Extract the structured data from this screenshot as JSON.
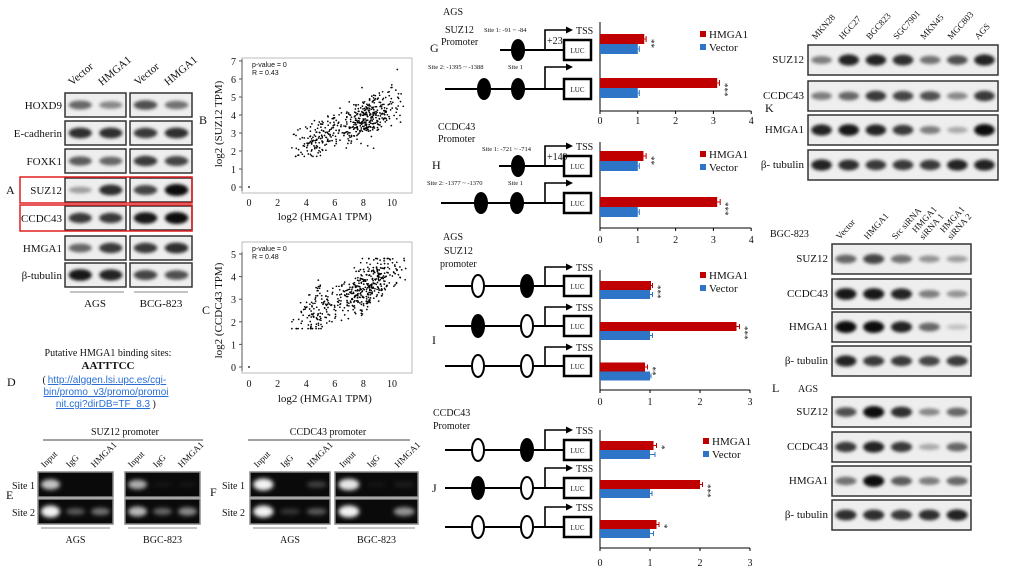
{
  "panel_letters": {
    "A": "A",
    "B": "B",
    "C": "C",
    "D": "D",
    "E": "E",
    "F": "F",
    "G": "G",
    "H": "H",
    "I": "I",
    "J": "J",
    "K": "K",
    "L": "L"
  },
  "colors": {
    "hmga1": "#c00000",
    "vector": "#2e75c8",
    "highlight": "#e02020",
    "link": "#2a6fd6"
  },
  "panel_a": {
    "columns": [
      "Vector",
      "HMGA1",
      "Vector",
      "HMGA1"
    ],
    "groups": [
      "AGS",
      "BCG-823"
    ],
    "rows": [
      {
        "label": "HOXD9",
        "highlight": false,
        "bands": [
          0.6,
          0.45,
          0.7,
          0.55
        ]
      },
      {
        "label": "E-cadherin",
        "highlight": false,
        "bands": [
          0.85,
          0.85,
          0.8,
          0.85
        ]
      },
      {
        "label": "FOXK1",
        "highlight": false,
        "bands": [
          0.65,
          0.6,
          0.8,
          0.75
        ]
      },
      {
        "label": "SUZ12",
        "highlight": true,
        "bands": [
          0.35,
          0.85,
          0.75,
          1.0
        ]
      },
      {
        "label": "CCDC43",
        "highlight": true,
        "bands": [
          0.8,
          0.8,
          0.95,
          1.0
        ]
      },
      {
        "label": "HMGA1",
        "highlight": false,
        "bands": [
          0.6,
          0.8,
          0.8,
          0.85
        ]
      },
      {
        "label": "β-tubulin",
        "highlight": false,
        "bands": [
          0.95,
          0.9,
          0.75,
          0.7
        ]
      }
    ]
  },
  "scatter_b": {
    "type": "scatter",
    "p_text": "p-value = 0",
    "r_text": "R = 0.43",
    "xlabel": "log2 (HMGA1 TPM)",
    "ylabel": "log2 (SUZ12 TPM)",
    "xticks": [
      "0",
      "2",
      "4",
      "6",
      "8",
      "10"
    ],
    "yticks": [
      "0",
      "1",
      "2",
      "3",
      "4",
      "5",
      "6",
      "7"
    ],
    "R": 0.43,
    "n_points": 500,
    "trend": {
      "slope": 0.34,
      "intercept": 1.1,
      "noise_sd": 0.55
    },
    "outlier": [
      0,
      0
    ]
  },
  "scatter_c": {
    "type": "scatter",
    "p_text": "p-value = 0",
    "r_text": "R = 0.48",
    "xlabel": "log2 (HMGA1 TPM)",
    "ylabel": "log2 (CCDC43 TPM)",
    "xticks": [
      "0",
      "2",
      "4",
      "6",
      "8",
      "10"
    ],
    "yticks": [
      "0",
      "1",
      "2",
      "3",
      "4",
      "5"
    ],
    "R": 0.48,
    "n_points": 500,
    "trend": {
      "slope": 0.31,
      "intercept": 1.05,
      "noise_sd": 0.5
    },
    "outlier": [
      0,
      0
    ]
  },
  "panel_d": {
    "title": "Putative HMGA1  binding sites:",
    "motif": "AATTTCC",
    "link_lines": [
      "http://alggen.lsi.upc.es/cgi-",
      "bin/promo_v3/promo/promoi",
      "nit.cgi?dirDB=TF_8.3"
    ],
    "open": "(",
    "close": ")"
  },
  "panel_e": {
    "title": "SUZ12 promoter",
    "lanes": [
      "Input",
      "IgG",
      "HMGA1"
    ],
    "groups": [
      "AGS",
      "BGC-823"
    ],
    "sites": [
      "Site 1",
      "Site 2"
    ],
    "bands": [
      [
        [
          0.8,
          0,
          0
        ],
        [
          0.7,
          0.05,
          0.05
        ]
      ],
      [
        [
          1,
          0.35,
          0.45
        ],
        [
          0.75,
          0.4,
          0.55
        ]
      ]
    ]
  },
  "panel_f": {
    "title": "CCDC43 promoter",
    "lanes": [
      "Input",
      "IgG",
      "HMGA1"
    ],
    "groups": [
      "AGS",
      "BGC-823"
    ],
    "sites": [
      "Site 1",
      "Site 2"
    ],
    "bands": [
      [
        [
          1,
          0,
          0.25
        ],
        [
          0.95,
          0.05,
          0.1
        ]
      ],
      [
        [
          1,
          0.2,
          0.35
        ],
        [
          1,
          0,
          0.6
        ]
      ]
    ]
  },
  "diagram_g": {
    "cell": "AGS",
    "gene": "SUZ12",
    "promoter": "Promoter",
    "site1": "Site 1:  -91 ~ -84",
    "offset": "+23",
    "site2": "Site 2:  -1395 ~ -1388",
    "site1_short": "Site 1",
    "tss": "TSS",
    "luc": "LUC"
  },
  "diagram_h": {
    "gene": "CCDC43",
    "promoter": "Promoter",
    "site1": "Site 1:  -721 ~ -714",
    "offset": "+149",
    "site2": "Site 2:  -1377 ~ -1370",
    "site1_short": "Site 1",
    "tss": "TSS",
    "luc": "LUC"
  },
  "diagram_i": {
    "cell": "AGS",
    "gene": "SUZ12",
    "promoter": "promoter",
    "tss": "TSS",
    "luc": "LUC",
    "constructs": [
      [
        "open",
        "filled"
      ],
      [
        "filled",
        "open"
      ],
      [
        "open",
        "open"
      ]
    ]
  },
  "diagram_j": {
    "gene": "CCDC43",
    "promoter": "Promoter",
    "tss": "TSS",
    "luc": "LUC",
    "constructs": [
      [
        "open",
        "filled"
      ],
      [
        "filled",
        "open"
      ],
      [
        "open",
        "open"
      ]
    ]
  },
  "chart_data": [
    {
      "id": "G",
      "type": "bar",
      "orientation": "horizontal",
      "xticks": [
        "0",
        "1",
        "2",
        "3",
        "4"
      ],
      "xlim": [
        0,
        4
      ],
      "legend": "top-right",
      "series": [
        {
          "name": "HMGA1",
          "values": [
            1.17,
            3.1
          ],
          "errors": [
            0.05,
            0.06
          ]
        },
        {
          "name": "Vector",
          "values": [
            1.0,
            1.0
          ],
          "errors": [
            0.04,
            0.04
          ]
        }
      ],
      "significance": [
        "**",
        "***"
      ]
    },
    {
      "id": "H",
      "type": "bar",
      "orientation": "horizontal",
      "xticks": [
        "0",
        "1",
        "2",
        "3",
        "4"
      ],
      "xlim": [
        0,
        4
      ],
      "legend": "top-right",
      "series": [
        {
          "name": "HMGA1",
          "values": [
            1.15,
            3.1
          ],
          "errors": [
            0.07,
            0.08
          ]
        },
        {
          "name": "Vector",
          "values": [
            1.0,
            1.0
          ],
          "errors": [
            0.04,
            0.04
          ]
        }
      ],
      "significance": [
        "**",
        "***"
      ]
    },
    {
      "id": "I",
      "type": "bar",
      "orientation": "horizontal",
      "xticks": [
        "0",
        "1",
        "2",
        "3"
      ],
      "xlim": [
        0,
        3
      ],
      "legend": "top-right",
      "series": [
        {
          "name": "HMGA1",
          "values": [
            1.02,
            2.73,
            0.9
          ],
          "errors": [
            0.03,
            0.06,
            0.05
          ]
        },
        {
          "name": "Vector",
          "values": [
            1.0,
            1.0,
            1.0
          ],
          "errors": [
            0.05,
            0.05,
            0.02
          ]
        }
      ],
      "significance": [
        "***",
        "***",
        "**"
      ]
    },
    {
      "id": "J",
      "type": "bar",
      "orientation": "horizontal",
      "xticks": [
        "0",
        "1",
        "2",
        "3"
      ],
      "xlim": [
        0,
        3
      ],
      "legend": "top-right",
      "series": [
        {
          "name": "HMGA1",
          "values": [
            1.07,
            2.0,
            1.13
          ],
          "errors": [
            0.06,
            0.05,
            0.05
          ]
        },
        {
          "name": "Vector",
          "values": [
            1.0,
            1.0,
            1.0
          ],
          "errors": [
            0.1,
            0.04,
            0.07
          ]
        }
      ],
      "significance": [
        "*",
        "***",
        "*"
      ]
    }
  ],
  "panel_k": {
    "columns": [
      "MKN28",
      "HGC27",
      "BGC823",
      "SGC7901",
      "MKN45",
      "MGC803",
      "AGS"
    ],
    "rows": [
      {
        "label": "SUZ12",
        "bands": [
          0.5,
          0.9,
          0.9,
          0.85,
          0.55,
          0.7,
          0.9
        ]
      },
      {
        "label": "CCDC43",
        "bands": [
          0.5,
          0.6,
          0.8,
          0.75,
          0.7,
          0.45,
          0.8
        ]
      },
      {
        "label": "HMGA1",
        "bands": [
          0.9,
          0.95,
          0.9,
          0.8,
          0.5,
          0.3,
          1.0
        ]
      },
      {
        "label": "β- tubulin",
        "bands": [
          0.9,
          0.85,
          0.8,
          0.8,
          0.8,
          0.9,
          0.9
        ]
      }
    ]
  },
  "panel_bgc": {
    "cell": "BGC-823",
    "columns": [
      [
        "Vector"
      ],
      [
        "HMGA1"
      ],
      [
        "Src siRNA"
      ],
      [
        "HMGA1",
        "siRNA 1"
      ],
      [
        "HMGA1",
        "siRNA 2"
      ]
    ],
    "rows": [
      {
        "label": "SUZ12",
        "bands": [
          0.6,
          0.75,
          0.55,
          0.4,
          0.35
        ]
      },
      {
        "label": "CCDC43",
        "bands": [
          0.95,
          0.95,
          0.9,
          0.5,
          0.4
        ]
      },
      {
        "label": "HMGA1",
        "bands": [
          1,
          1,
          0.9,
          0.6,
          0.2
        ]
      },
      {
        "label": "β- tubulin",
        "bands": [
          0.9,
          0.8,
          0.8,
          0.75,
          0.8
        ]
      }
    ]
  },
  "panel_l": {
    "cell": "AGS",
    "rows": [
      {
        "label": "SUZ12",
        "bands": [
          0.7,
          1,
          0.85,
          0.45,
          0.6
        ]
      },
      {
        "label": "CCDC43",
        "bands": [
          0.8,
          0.9,
          0.8,
          0.3,
          0.6
        ]
      },
      {
        "label": "HMGA1",
        "bands": [
          0.55,
          1,
          0.65,
          0.5,
          0.6
        ]
      },
      {
        "label": "β- tubulin",
        "bands": [
          0.85,
          0.85,
          0.8,
          0.85,
          0.9
        ]
      }
    ]
  }
}
